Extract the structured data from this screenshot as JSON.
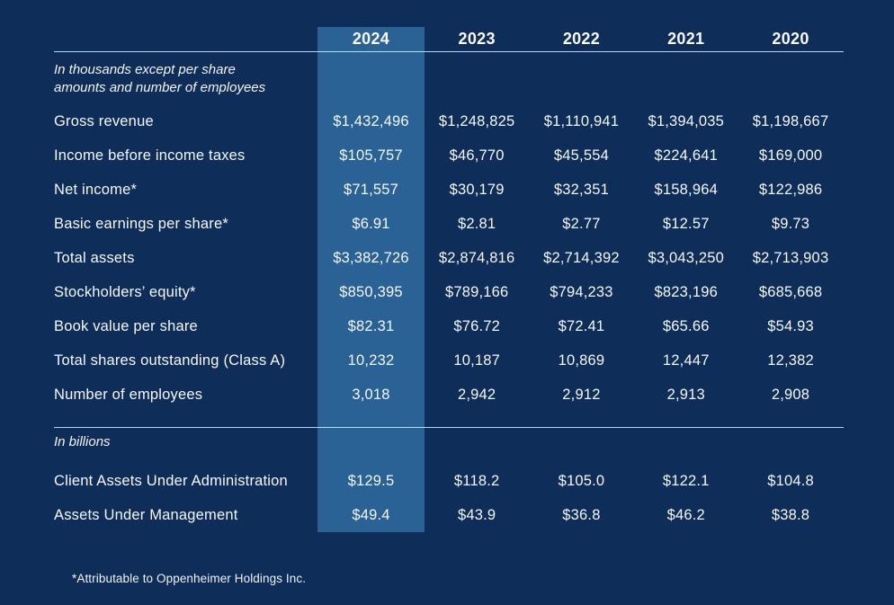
{
  "page": {
    "background_color": "#0e2e59",
    "highlight_color": "#2b6295",
    "text_color": "#fafafa",
    "highlighted_year": "2024"
  },
  "table": {
    "years": [
      "2024",
      "2023",
      "2022",
      "2021",
      "2020"
    ],
    "units_note": [
      "In thousands except per share",
      "amounts and number of employees"
    ],
    "rows": [
      {
        "label": "Gross revenue",
        "values": [
          "$1,432,496",
          "$1,248,825",
          "$1,110,941",
          "$1,394,035",
          "$1,198,667"
        ]
      },
      {
        "label": "Income before income taxes",
        "values": [
          "$105,757",
          "$46,770",
          "$45,554",
          "$224,641",
          "$169,000"
        ]
      },
      {
        "label": "Net income*",
        "values": [
          "$71,557",
          "$30,179",
          "$32,351",
          "$158,964",
          "$122,986"
        ]
      },
      {
        "label": "Basic earnings per share*",
        "values": [
          "$6.91",
          "$2.81",
          "$2.77",
          "$12.57",
          "$9.73"
        ]
      },
      {
        "label": "Total assets",
        "values": [
          "$3,382,726",
          "$2,874,816",
          "$2,714,392",
          "$3,043,250",
          "$2,713,903"
        ]
      },
      {
        "label": "Stockholders’ equity*",
        "values": [
          "$850,395",
          "$789,166",
          "$794,233",
          "$823,196",
          "$685,668"
        ]
      },
      {
        "label": "Book value per share",
        "values": [
          "$82.31",
          "$76.72",
          "$72.41",
          "$65.66",
          "$54.93"
        ]
      },
      {
        "label": "Total shares outstanding (Class A)",
        "values": [
          "10,232",
          "10,187",
          "10,869",
          "12,447",
          "12,382"
        ]
      },
      {
        "label": "Number of employees",
        "values": [
          "3,018",
          "2,942",
          "2,912",
          "2,913",
          "2,908"
        ]
      }
    ],
    "billions_note": "In billions",
    "billions_rows": [
      {
        "label": "Client Assets Under Administration",
        "values": [
          "$129.5",
          "$118.2",
          "$105.0",
          "$122.1",
          "$104.8"
        ]
      },
      {
        "label": "Assets Under Management",
        "values": [
          "$49.4",
          "$43.9",
          "$36.8",
          "$46.2",
          "$38.8"
        ]
      }
    ],
    "footnote": "*Attributable to Oppenheimer Holdings Inc."
  }
}
